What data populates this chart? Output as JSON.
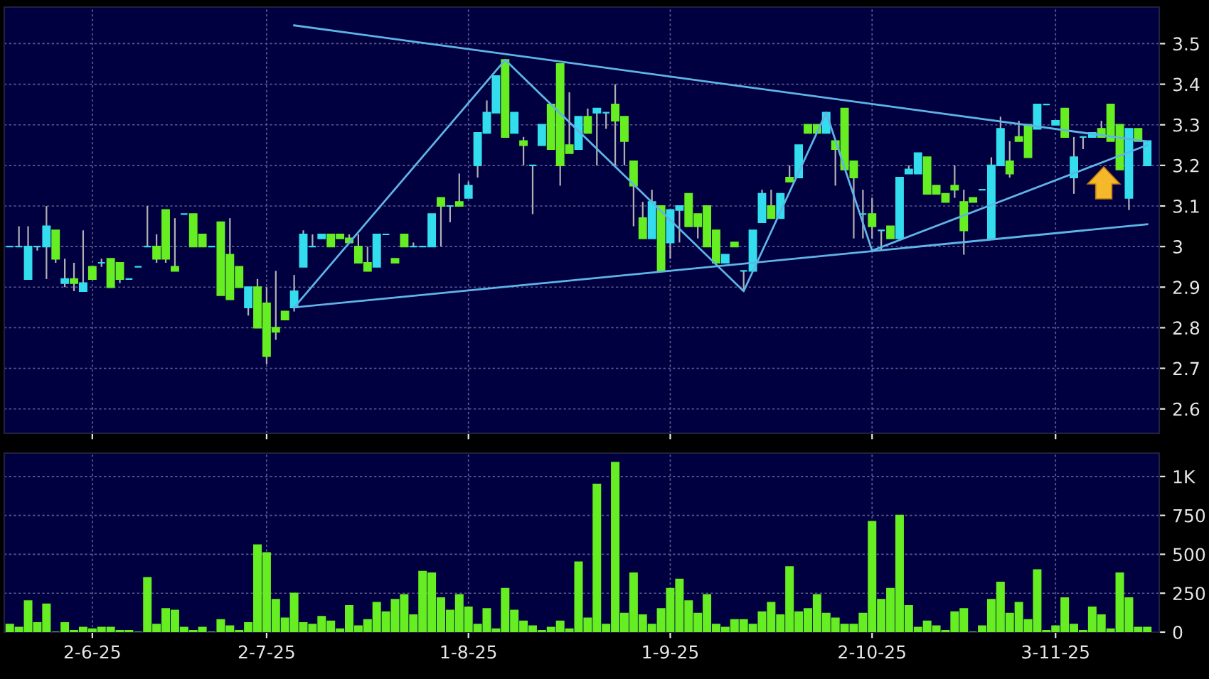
{
  "chart_data": [
    {
      "type": "candlestick",
      "categories": [
        null,
        null,
        null,
        null,
        null,
        null,
        null,
        null,
        null,
        null,
        null,
        null,
        null,
        null,
        null,
        null,
        null,
        null,
        null,
        null,
        null,
        null,
        null,
        null,
        null,
        null,
        null,
        null,
        null,
        null,
        null,
        null,
        null,
        null,
        null,
        null,
        null,
        null,
        null,
        null,
        null,
        null,
        null,
        null,
        null,
        null,
        null,
        null,
        null,
        null,
        null,
        null,
        null,
        null,
        null,
        null,
        null,
        null,
        null,
        null,
        null,
        null,
        null,
        null,
        null,
        null,
        null,
        null,
        null,
        null,
        null,
        null,
        null,
        null,
        null,
        null,
        null,
        null,
        null,
        null,
        null,
        null,
        null,
        null,
        null,
        null,
        null,
        null,
        null,
        null,
        null,
        null,
        null,
        null,
        null,
        null,
        null,
        null,
        null,
        null,
        null,
        null,
        null,
        null,
        null,
        null,
        null,
        null,
        null,
        null,
        null,
        null,
        null,
        null,
        null,
        null,
        null,
        null,
        null,
        null,
        null,
        null,
        null,
        null,
        null
      ],
      "ohlc": [
        [
          3.0,
          3.0,
          3.0,
          3.0
        ],
        [
          3.0,
          3.05,
          3.0,
          3.0
        ],
        [
          2.92,
          3.05,
          2.92,
          3.0
        ],
        [
          3.0,
          3.0,
          2.99,
          3.0
        ],
        [
          3.0,
          3.1,
          2.92,
          3.05
        ],
        [
          3.04,
          3.04,
          2.96,
          2.97
        ],
        [
          2.91,
          2.97,
          2.9,
          2.92
        ],
        [
          2.92,
          2.96,
          2.89,
          2.91
        ],
        [
          2.89,
          3.04,
          2.89,
          2.91
        ],
        [
          2.95,
          2.95,
          2.92,
          2.92
        ],
        [
          2.96,
          2.97,
          2.95,
          2.96
        ],
        [
          2.97,
          2.97,
          2.9,
          2.9
        ],
        [
          2.96,
          2.96,
          2.91,
          2.92
        ],
        [
          2.92,
          2.92,
          2.92,
          2.92
        ],
        [
          2.95,
          2.95,
          2.95,
          2.95
        ],
        [
          3.0,
          3.1,
          3.0,
          3.0
        ],
        [
          3.0,
          3.03,
          2.96,
          2.97
        ],
        [
          3.09,
          3.09,
          2.96,
          2.97
        ],
        [
          2.95,
          3.07,
          2.94,
          2.94
        ],
        [
          3.08,
          3.08,
          3.08,
          3.08
        ],
        [
          3.08,
          3.08,
          3.0,
          3.0
        ],
        [
          3.03,
          3.03,
          3.0,
          3.0
        ],
        [
          3.0,
          3.0,
          3.0,
          3.0
        ],
        [
          3.06,
          3.06,
          2.88,
          2.88
        ],
        [
          2.98,
          3.07,
          2.87,
          2.87
        ],
        [
          2.95,
          2.95,
          2.9,
          2.9
        ],
        [
          2.85,
          2.9,
          2.83,
          2.9
        ],
        [
          2.9,
          2.92,
          2.8,
          2.8
        ],
        [
          2.86,
          2.9,
          2.71,
          2.73
        ],
        [
          2.8,
          2.94,
          2.77,
          2.79
        ],
        [
          2.84,
          2.84,
          2.82,
          2.82
        ],
        [
          2.85,
          2.93,
          2.84,
          2.89
        ],
        [
          2.95,
          3.04,
          2.95,
          3.03
        ],
        [
          3.0,
          3.03,
          3.0,
          3.0
        ],
        [
          3.02,
          3.03,
          3.02,
          3.03
        ],
        [
          3.03,
          3.03,
          3.0,
          3.0
        ],
        [
          3.03,
          3.03,
          3.02,
          3.02
        ],
        [
          3.02,
          3.03,
          3.01,
          3.01
        ],
        [
          3.0,
          3.03,
          2.96,
          2.96
        ],
        [
          2.96,
          3.0,
          2.94,
          2.94
        ],
        [
          2.95,
          3.03,
          2.95,
          3.03
        ],
        [
          3.03,
          3.03,
          3.03,
          3.03
        ],
        [
          2.97,
          2.97,
          2.96,
          2.96
        ],
        [
          3.03,
          3.03,
          3.0,
          3.0
        ],
        [
          3.0,
          3.01,
          3.0,
          3.0
        ],
        [
          3.0,
          3.0,
          3.0,
          3.0
        ],
        [
          3.0,
          3.08,
          3.0,
          3.08
        ],
        [
          3.12,
          3.12,
          3.0,
          3.1
        ],
        [
          3.1,
          3.1,
          3.06,
          3.1
        ],
        [
          3.11,
          3.18,
          3.1,
          3.1
        ],
        [
          3.12,
          3.16,
          3.12,
          3.15
        ],
        [
          3.2,
          3.28,
          3.17,
          3.28
        ],
        [
          3.28,
          3.36,
          3.28,
          3.33
        ],
        [
          3.33,
          3.42,
          3.33,
          3.42
        ],
        [
          3.46,
          3.46,
          3.27,
          3.27
        ],
        [
          3.28,
          3.33,
          3.28,
          3.33
        ],
        [
          3.26,
          3.27,
          3.2,
          3.25
        ],
        [
          3.2,
          3.2,
          3.08,
          3.2
        ],
        [
          3.25,
          3.3,
          3.25,
          3.3
        ],
        [
          3.35,
          3.35,
          3.24,
          3.24
        ],
        [
          3.45,
          3.45,
          3.15,
          3.2
        ],
        [
          3.25,
          3.38,
          3.23,
          3.23
        ],
        [
          3.24,
          3.32,
          3.24,
          3.32
        ],
        [
          3.32,
          3.34,
          3.28,
          3.28
        ],
        [
          3.33,
          3.34,
          3.2,
          3.34
        ],
        [
          3.33,
          3.33,
          3.29,
          3.33
        ],
        [
          3.35,
          3.4,
          3.2,
          3.31
        ],
        [
          3.32,
          3.32,
          3.2,
          3.26
        ],
        [
          3.21,
          3.21,
          3.05,
          3.15
        ],
        [
          3.07,
          3.11,
          3.02,
          3.02
        ],
        [
          3.02,
          3.14,
          3.02,
          3.11
        ],
        [
          3.1,
          3.1,
          2.94,
          2.94
        ],
        [
          3.01,
          3.09,
          2.97,
          3.09
        ],
        [
          3.09,
          3.1,
          3.01,
          3.1
        ],
        [
          3.13,
          3.13,
          3.05,
          3.05
        ],
        [
          3.08,
          3.08,
          3.02,
          3.05
        ],
        [
          3.1,
          3.1,
          3.0,
          3.0
        ],
        [
          3.04,
          3.04,
          2.96,
          2.96
        ],
        [
          2.96,
          2.98,
          2.96,
          2.98
        ],
        [
          3.01,
          3.01,
          3.0,
          3.0
        ],
        [
          2.94,
          2.94,
          2.89,
          2.94
        ],
        [
          2.94,
          3.04,
          2.94,
          3.04
        ],
        [
          3.06,
          3.14,
          3.06,
          3.13
        ],
        [
          3.1,
          3.14,
          3.07,
          3.07
        ],
        [
          3.07,
          3.13,
          3.07,
          3.13
        ],
        [
          3.17,
          3.2,
          3.16,
          3.16
        ],
        [
          3.17,
          3.25,
          3.17,
          3.25
        ],
        [
          3.3,
          3.3,
          3.28,
          3.28
        ],
        [
          3.3,
          3.3,
          3.28,
          3.28
        ],
        [
          3.28,
          3.33,
          3.28,
          3.33
        ],
        [
          3.26,
          3.26,
          3.15,
          3.24
        ],
        [
          3.34,
          3.34,
          3.19,
          3.19
        ],
        [
          3.21,
          3.21,
          3.02,
          3.17
        ],
        [
          3.08,
          3.14,
          3.02,
          3.08
        ],
        [
          3.08,
          3.12,
          3.02,
          3.05
        ],
        [
          3.04,
          3.04,
          2.99,
          3.04
        ],
        [
          3.05,
          3.05,
          3.02,
          3.02
        ],
        [
          3.02,
          3.17,
          3.02,
          3.17
        ],
        [
          3.18,
          3.2,
          3.18,
          3.19
        ],
        [
          3.18,
          3.23,
          3.18,
          3.23
        ],
        [
          3.22,
          3.22,
          3.13,
          3.13
        ],
        [
          3.15,
          3.15,
          3.13,
          3.13
        ],
        [
          3.13,
          3.13,
          3.11,
          3.11
        ],
        [
          3.15,
          3.2,
          3.12,
          3.14
        ],
        [
          3.11,
          3.14,
          2.98,
          3.04
        ],
        [
          3.12,
          3.12,
          3.11,
          3.11
        ],
        [
          3.14,
          3.14,
          3.14,
          3.14
        ],
        [
          3.02,
          3.22,
          3.02,
          3.2
        ],
        [
          3.2,
          3.32,
          3.2,
          3.29
        ],
        [
          3.21,
          3.26,
          3.17,
          3.18
        ],
        [
          3.27,
          3.31,
          3.26,
          3.26
        ],
        [
          3.3,
          3.3,
          3.22,
          3.22
        ],
        [
          3.29,
          3.35,
          3.29,
          3.35
        ],
        [
          3.35,
          3.35,
          3.35,
          3.35
        ],
        [
          3.3,
          3.31,
          3.3,
          3.31
        ],
        [
          3.34,
          3.34,
          3.27,
          3.27
        ],
        [
          3.17,
          3.27,
          3.13,
          3.22
        ],
        [
          3.27,
          3.27,
          3.24,
          3.27
        ],
        [
          3.27,
          3.28,
          3.27,
          3.28
        ],
        [
          3.29,
          3.31,
          3.27,
          3.27
        ],
        [
          3.35,
          3.35,
          3.26,
          3.26
        ],
        [
          3.3,
          3.3,
          3.19,
          3.19
        ],
        [
          3.12,
          3.29,
          3.09,
          3.29
        ],
        [
          3.29,
          3.29,
          3.26,
          3.26
        ],
        [
          3.2,
          3.26,
          3.2,
          3.26
        ]
      ],
      "colors": [
        "#33ddee",
        "#33ddee",
        "#33ddee",
        "#33ddee",
        "#33ddee",
        "#66ee22",
        "#33ddee",
        "#66ee22",
        "#33ddee",
        "#66ee22",
        "#33ddee",
        "#66ee22",
        "#66ee22",
        "#33ddee",
        "#33ddee",
        "#33ddee",
        "#66ee22",
        "#66ee22",
        "#66ee22",
        "#33ddee",
        "#66ee22",
        "#66ee22",
        "#33ddee",
        "#66ee22",
        "#66ee22",
        "#66ee22",
        "#33ddee",
        "#66ee22",
        "#66ee22",
        "#66ee22",
        "#66ee22",
        "#33ddee",
        "#33ddee",
        "#33ddee",
        "#33ddee",
        "#66ee22",
        "#66ee22",
        "#66ee22",
        "#66ee22",
        "#66ee22",
        "#33ddee",
        "#33ddee",
        "#66ee22",
        "#66ee22",
        "#33ddee",
        "#33ddee",
        "#33ddee",
        "#66ee22",
        "#33ddee",
        "#66ee22",
        "#33ddee",
        "#33ddee",
        "#33ddee",
        "#33ddee",
        "#66ee22",
        "#33ddee",
        "#66ee22",
        "#33ddee",
        "#33ddee",
        "#66ee22",
        "#66ee22",
        "#66ee22",
        "#33ddee",
        "#66ee22",
        "#33ddee",
        "#33ddee",
        "#66ee22",
        "#66ee22",
        "#66ee22",
        "#66ee22",
        "#33ddee",
        "#66ee22",
        "#33ddee",
        "#33ddee",
        "#66ee22",
        "#66ee22",
        "#66ee22",
        "#66ee22",
        "#33ddee",
        "#66ee22",
        "#33ddee",
        "#33ddee",
        "#33ddee",
        "#66ee22",
        "#33ddee",
        "#66ee22",
        "#33ddee",
        "#66ee22",
        "#66ee22",
        "#33ddee",
        "#66ee22",
        "#66ee22",
        "#66ee22",
        "#33ddee",
        "#66ee22",
        "#33ddee",
        "#66ee22",
        "#33ddee",
        "#33ddee",
        "#33ddee",
        "#66ee22",
        "#66ee22",
        "#66ee22",
        "#66ee22",
        "#66ee22",
        "#66ee22",
        "#33ddee",
        "#33ddee",
        "#33ddee",
        "#66ee22",
        "#66ee22",
        "#66ee22",
        "#33ddee",
        "#33ddee",
        "#33ddee",
        "#66ee22",
        "#33ddee",
        "#33ddee",
        "#33ddee",
        "#66ee22",
        "#66ee22",
        "#66ee22",
        "#33ddee",
        "#66ee22",
        "#33ddee"
      ],
      "series": [
        {
          "type": "line",
          "color": "#5fb4e6",
          "values": [
            null,
            null,
            null,
            null,
            null,
            null,
            null,
            null,
            null,
            null,
            null,
            null,
            null,
            null,
            null,
            null,
            null,
            null,
            null,
            null,
            null,
            null,
            null,
            null,
            null,
            null,
            null,
            null,
            null,
            null,
            null,
            2.85,
            null,
            null,
            null,
            null,
            null,
            null,
            null,
            null,
            null,
            null,
            null,
            null,
            null,
            null,
            null,
            null,
            null,
            null,
            null,
            null,
            null,
            null,
            3.46,
            null,
            null,
            null,
            null,
            null,
            null,
            null,
            null,
            null,
            null,
            null,
            null,
            null,
            null,
            null,
            null,
            null,
            null,
            null,
            null,
            null,
            null,
            null,
            null,
            null,
            2.89,
            null,
            null,
            null,
            null,
            null,
            null,
            null,
            null,
            3.33,
            null,
            null,
            null,
            null,
            2.99,
            null,
            null,
            null,
            null,
            null,
            null,
            null,
            null,
            null,
            null,
            null,
            null,
            null,
            null,
            null,
            null,
            null,
            null,
            null,
            null,
            null,
            null,
            null,
            null,
            null,
            null,
            null,
            null,
            null,
            null
          ]
        },
        {
          "type": "line",
          "color": "#5fb4e6",
          "values": [
            null,
            null,
            null,
            null,
            null,
            null,
            null,
            null,
            null,
            null,
            null,
            null,
            null,
            null,
            null,
            null,
            null,
            null,
            null,
            null,
            null,
            null,
            null,
            null,
            null,
            null,
            null,
            null,
            null,
            null,
            null,
            3.545,
            null,
            null,
            null,
            null,
            null,
            null,
            null,
            null,
            null,
            null,
            null,
            null,
            null,
            null,
            null,
            null,
            null,
            null,
            null,
            null,
            null,
            null,
            null,
            null,
            null,
            null,
            null,
            null,
            null,
            null,
            null,
            null,
            null,
            null,
            null,
            null,
            null,
            null,
            null,
            null,
            null,
            null,
            null,
            null,
            null,
            null,
            null,
            null,
            null,
            null,
            null,
            null,
            null,
            null,
            null,
            null,
            null,
            null,
            null,
            null,
            null,
            null,
            null,
            null,
            null,
            null,
            null,
            null,
            null,
            null,
            null,
            null,
            null,
            null,
            null,
            null,
            null,
            null,
            null,
            null,
            null,
            null,
            null,
            null,
            null,
            null,
            null,
            null,
            null,
            null,
            null,
            null,
            3.259
          ]
        },
        {
          "type": "line",
          "color": "#5fb4e6",
          "values": [
            null,
            null,
            null,
            null,
            null,
            null,
            null,
            null,
            null,
            null,
            null,
            null,
            null,
            null,
            null,
            null,
            null,
            null,
            null,
            null,
            null,
            null,
            null,
            null,
            null,
            null,
            null,
            null,
            null,
            null,
            null,
            2.85,
            null,
            null,
            null,
            null,
            null,
            null,
            null,
            null,
            null,
            null,
            null,
            null,
            null,
            null,
            null,
            null,
            null,
            null,
            null,
            null,
            null,
            null,
            null,
            null,
            null,
            null,
            null,
            null,
            null,
            null,
            null,
            null,
            null,
            null,
            null,
            null,
            null,
            null,
            null,
            null,
            null,
            null,
            null,
            null,
            null,
            null,
            null,
            null,
            null,
            null,
            null,
            null,
            null,
            null,
            null,
            null,
            null,
            null,
            null,
            null,
            null,
            null,
            null,
            null,
            null,
            null,
            null,
            null,
            null,
            null,
            null,
            null,
            null,
            null,
            null,
            null,
            null,
            null,
            null,
            null,
            null,
            null,
            null,
            null,
            null,
            null,
            null,
            null,
            null,
            null,
            null,
            null,
            3.055
          ]
        },
        {
          "type": "line",
          "color": "#5fb4e6",
          "values": [
            null,
            null,
            null,
            null,
            null,
            null,
            null,
            null,
            null,
            null,
            null,
            null,
            null,
            null,
            null,
            null,
            null,
            null,
            null,
            null,
            null,
            null,
            null,
            null,
            null,
            null,
            null,
            null,
            null,
            null,
            null,
            null,
            null,
            null,
            null,
            null,
            null,
            null,
            null,
            null,
            null,
            null,
            null,
            null,
            null,
            null,
            null,
            null,
            null,
            null,
            null,
            null,
            null,
            null,
            null,
            null,
            null,
            null,
            null,
            null,
            null,
            null,
            null,
            null,
            null,
            null,
            null,
            null,
            null,
            null,
            null,
            null,
            null,
            null,
            null,
            null,
            null,
            null,
            null,
            null,
            null,
            null,
            null,
            null,
            null,
            null,
            null,
            null,
            null,
            null,
            null,
            null,
            null,
            null,
            2.99,
            null,
            null,
            null,
            null,
            null,
            null,
            null,
            null,
            null,
            null,
            null,
            null,
            null,
            null,
            null,
            null,
            null,
            null,
            null,
            null,
            null,
            null,
            null,
            null,
            null,
            null,
            null,
            null,
            null,
            3.25
          ]
        }
      ],
      "ylim": [
        2.54,
        3.59
      ],
      "yticks": [
        2.6,
        2.7,
        2.8,
        2.9,
        {
          "value": 3.0,
          "label": "3"
        },
        3.1,
        3.2,
        3.3,
        3.4,
        3.5
      ],
      "tick_labels": "y",
      "grid": true
    },
    {
      "type": "bar",
      "categories": [
        null,
        null,
        null,
        null,
        null,
        null,
        null,
        null,
        null,
        "2-6-25",
        null,
        null,
        null,
        null,
        null,
        null,
        null,
        null,
        null,
        null,
        null,
        null,
        null,
        null,
        null,
        null,
        null,
        null,
        "2-7-25",
        null,
        null,
        null,
        null,
        null,
        null,
        null,
        null,
        null,
        null,
        null,
        null,
        null,
        null,
        null,
        null,
        null,
        null,
        null,
        null,
        null,
        "1-8-25",
        null,
        null,
        null,
        null,
        null,
        null,
        null,
        null,
        null,
        null,
        null,
        null,
        null,
        null,
        null,
        null,
        null,
        null,
        null,
        null,
        null,
        "1-9-25",
        null,
        null,
        null,
        null,
        null,
        null,
        null,
        null,
        null,
        null,
        null,
        null,
        null,
        null,
        null,
        null,
        null,
        null,
        null,
        null,
        null,
        "2-10-25",
        null,
        null,
        null,
        null,
        null,
        null,
        null,
        null,
        null,
        null,
        null,
        null,
        null,
        null,
        null,
        null,
        null,
        null,
        null,
        "3-11-25",
        null,
        null,
        null,
        null,
        null,
        null,
        null,
        null,
        null,
        null
      ],
      "values": [
        50,
        30,
        200,
        60,
        180,
        0,
        60,
        10,
        30,
        20,
        30,
        30,
        10,
        10,
        0,
        350,
        50,
        150,
        140,
        30,
        10,
        30,
        0,
        80,
        40,
        10,
        60,
        560,
        510,
        210,
        90,
        250,
        60,
        50,
        100,
        70,
        20,
        170,
        40,
        80,
        190,
        130,
        210,
        240,
        110,
        390,
        380,
        220,
        140,
        240,
        160,
        50,
        150,
        20,
        280,
        140,
        70,
        40,
        10,
        30,
        70,
        20,
        450,
        90,
        950,
        50,
        1090,
        120,
        380,
        110,
        50,
        150,
        280,
        340,
        200,
        120,
        240,
        50,
        30,
        80,
        80,
        50,
        130,
        190,
        110,
        420,
        130,
        150,
        240,
        120,
        90,
        50,
        50,
        120,
        710,
        210,
        280,
        750,
        170,
        30,
        70,
        40,
        10,
        130,
        150,
        0,
        40,
        210,
        320,
        120,
        190,
        80,
        400,
        10,
        40,
        220,
        50,
        10,
        160,
        110,
        20,
        380,
        220,
        30,
        30
      ],
      "color": "#66ee22",
      "ylim": [
        0,
        1150
      ],
      "yticks": [
        0,
        250,
        500,
        750,
        {
          "value": 1000,
          "label": "1K"
        }
      ],
      "grid": true
    }
  ]
}
